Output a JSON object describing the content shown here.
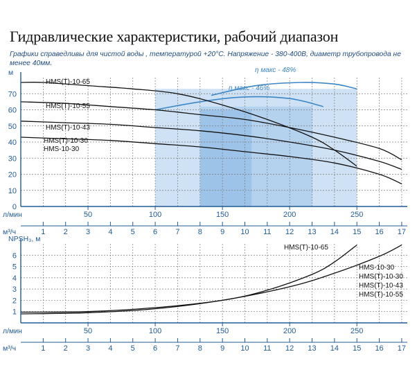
{
  "header": {
    "title": "Гидравлические характеристики, рабочий диапазон",
    "subtitle": "Графики справедливы для чистой воды , температурой  +20°С. Напряжение - 380-400В,  диаметр  трубопровода не менее 40мм."
  },
  "colors": {
    "axis_blue": "#1f5a96",
    "curve": "#111111",
    "band_light": "#cfe2f5",
    "band_mid": "#b4d1ee",
    "band_dark": "#9ec3e8",
    "efficiency": "#3d86c6"
  },
  "chart_data": [
    {
      "type": "line",
      "ylabel": "м",
      "xlabel_primary": "л/мин",
      "xlabel_secondary": "м³/ч",
      "xlim": [
        0,
        17.25
      ],
      "ylim": [
        0,
        80
      ],
      "yticks": [
        0,
        10,
        20,
        30,
        40,
        50,
        60,
        70
      ],
      "x_lmin_ticks": [
        50,
        100,
        150,
        200,
        250
      ],
      "x_m3h_ticks": [
        1,
        2,
        3,
        4,
        5,
        6,
        7,
        8,
        9,
        10,
        11,
        12,
        13,
        14,
        15,
        16,
        17
      ],
      "grid": true,
      "series": [
        {
          "name": "HMS(T)-10-65",
          "x": [
            0,
            1,
            3,
            5,
            7,
            9,
            11,
            13,
            14,
            15
          ],
          "y": [
            77,
            77,
            75,
            73,
            70,
            63,
            54,
            43,
            35,
            25
          ]
        },
        {
          "name": "HMS(T)-10-55",
          "x": [
            0,
            2,
            4,
            6,
            8,
            10,
            12,
            14,
            16,
            17
          ],
          "y": [
            65,
            64,
            62,
            60,
            57,
            54,
            49,
            43,
            36,
            29
          ]
        },
        {
          "name": "HMS(T)-10-43",
          "x": [
            0,
            2,
            4,
            6,
            8,
            10,
            12,
            14,
            16,
            17
          ],
          "y": [
            53,
            52,
            51,
            49,
            47,
            44,
            40,
            35,
            28,
            23
          ]
        },
        {
          "name": "HMS(T)-10-30",
          "x": [
            0,
            2,
            4,
            6,
            8,
            10,
            12,
            14,
            16,
            17
          ],
          "y": [
            43,
            42,
            41,
            39,
            37,
            34,
            31,
            27,
            20,
            14
          ]
        },
        {
          "name": "HMS-10-30",
          "x": [
            0,
            2,
            4,
            6,
            8,
            10,
            12,
            14,
            16,
            17
          ],
          "y": [
            43,
            42,
            41,
            39,
            37,
            34,
            31,
            27,
            20,
            14
          ]
        }
      ],
      "operating_ranges": [
        {
          "x": [
            6,
            15
          ]
        },
        {
          "x": [
            8,
            13
          ]
        },
        {
          "x": [
            8,
            10.3
          ]
        }
      ],
      "efficiency_curves": [
        {
          "label": "η макс - 48%",
          "x": [
            8.5,
            10.5,
            12.5,
            14,
            15
          ],
          "y": [
            69,
            75,
            77,
            76,
            73
          ]
        },
        {
          "label": "η макс - 46%",
          "x": [
            6,
            8,
            10,
            12,
            13.5
          ],
          "y": [
            60,
            65,
            68,
            67,
            62
          ]
        }
      ]
    },
    {
      "type": "line",
      "ylabel": "NPSH₃, м",
      "xlabel_primary": "л/мин",
      "xlabel_secondary": "м³/ч",
      "xlim": [
        0,
        17.25
      ],
      "ylim": [
        0,
        7
      ],
      "yticks": [
        1,
        2,
        3,
        4,
        5,
        6
      ],
      "x_lmin_ticks": [
        50,
        100,
        150,
        200,
        250
      ],
      "x_m3h_ticks": [
        1,
        2,
        3,
        4,
        5,
        6,
        7,
        8,
        9,
        10,
        11,
        12,
        13,
        14,
        15,
        16,
        17
      ],
      "grid": true,
      "series": [
        {
          "name": "HMS(T)-10-65",
          "x": [
            0,
            3,
            6,
            9,
            11,
            13,
            14,
            15
          ],
          "y": [
            0.95,
            1.0,
            1.35,
            2.0,
            2.9,
            4.3,
            5.4,
            6.9
          ]
        },
        {
          "name": "HMS-10-30 / HMS(T)-10-30 / HMS(T)-10-43 / HMS(T)-10-55",
          "x": [
            0,
            3,
            6,
            9,
            12,
            14,
            16,
            17
          ],
          "y": [
            0.8,
            0.9,
            1.25,
            2.0,
            3.2,
            4.4,
            5.9,
            6.9
          ]
        }
      ],
      "series_labels": [
        "HMS(T)-10-65",
        "HMS-10-30",
        "HMS(T)-10-30",
        "HMS(T)-10-43",
        "HMS(T)-10-55"
      ]
    }
  ]
}
